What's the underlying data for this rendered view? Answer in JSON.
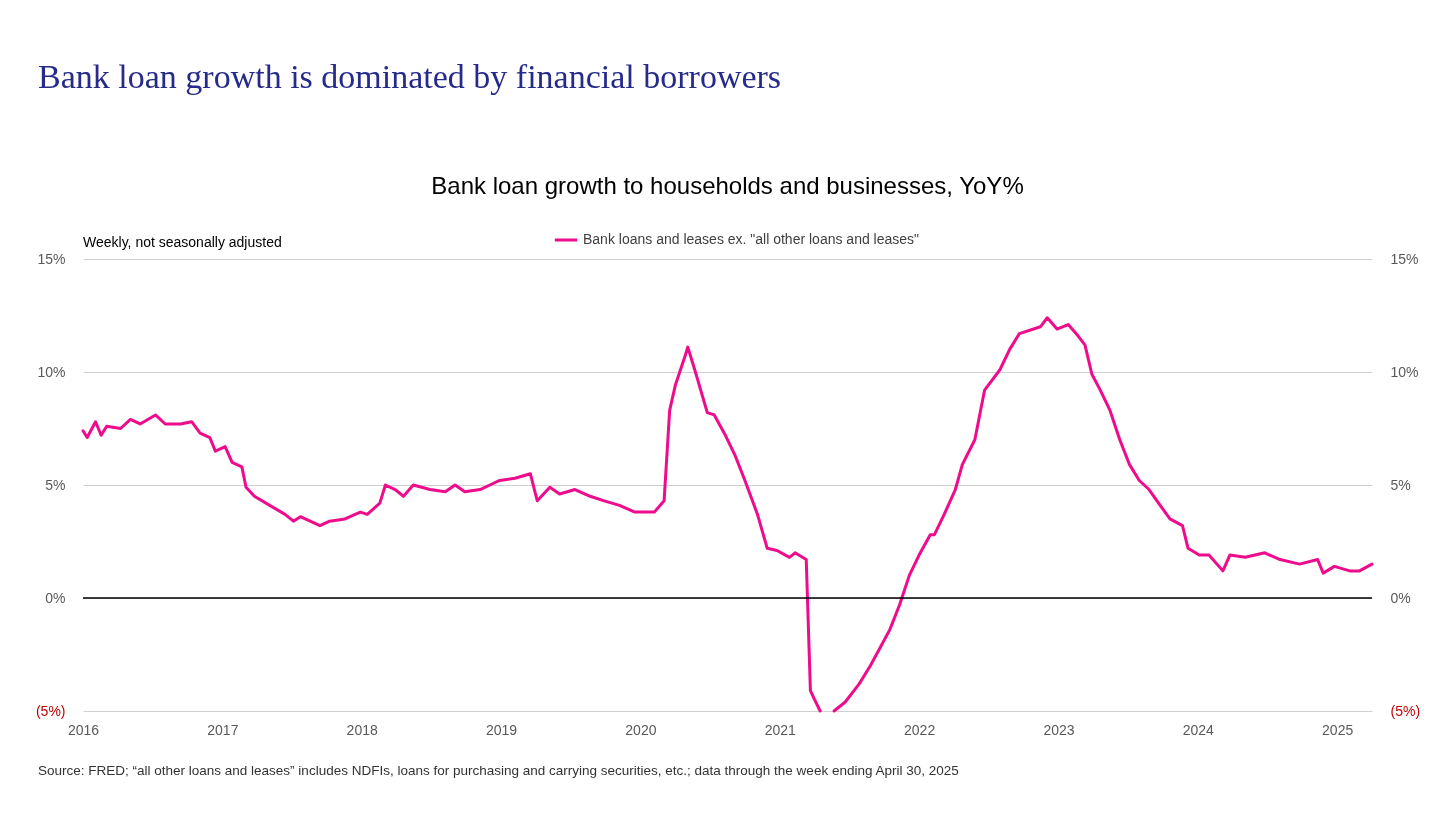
{
  "chart_data": {
    "type": "line",
    "title": "Bank loan growth is dominated by financial borrowers",
    "subtitle": "Bank loan growth to households and businesses, YoY%",
    "annotations": [
      "Weekly, not seasonally adjusted",
      "Source: FRED; “all other loans and leases” includes NDFIs, loans for purchasing and carrying securities, etc.; data through the week ending April 30, 2025"
    ],
    "x": [
      2016.0,
      2016.03,
      2016.09,
      2016.13,
      2016.17,
      2016.27,
      2016.34,
      2016.41,
      2016.52,
      2016.59,
      2016.7,
      2016.78,
      2016.84,
      2016.91,
      2016.95,
      2017.02,
      2017.07,
      2017.14,
      2017.17,
      2017.23,
      2017.34,
      2017.45,
      2017.51,
      2017.56,
      2017.63,
      2017.7,
      2017.77,
      2017.88,
      2017.99,
      2018.04,
      2018.13,
      2018.17,
      2018.24,
      2018.3,
      2018.37,
      2018.49,
      2018.6,
      2018.67,
      2018.74,
      2018.85,
      2018.92,
      2018.99,
      2019.1,
      2019.21,
      2019.26,
      2019.35,
      2019.42,
      2019.53,
      2019.64,
      2019.74,
      2019.85,
      2019.96,
      2020.1,
      2020.17,
      2020.21,
      2020.25,
      2020.32,
      2020.34,
      2020.39,
      2020.48,
      2020.53,
      2020.61,
      2020.68,
      2020.75,
      2020.84,
      2020.91,
      2020.98,
      2021.07,
      2021.11,
      2021.19,
      2021.22,
      2021.25,
      2021.29,
      2021.34,
      2021.39,
      2021.47,
      2021.57,
      2021.65,
      2021.72,
      2021.79,
      2021.86,
      2021.93,
      2022.0,
      2022.08,
      2022.11,
      2022.18,
      2022.26,
      2022.31,
      2022.4,
      2022.47,
      2022.58,
      2022.65,
      2022.72,
      2022.87,
      2022.92,
      2022.99,
      2023.07,
      2023.14,
      2023.19,
      2023.24,
      2023.3,
      2023.37,
      2023.44,
      2023.51,
      2023.58,
      2023.65,
      2023.73,
      2023.8,
      2023.89,
      2023.93,
      2024.01,
      2024.08,
      2024.18,
      2024.23,
      2024.34,
      2024.48,
      2024.59,
      2024.73,
      2024.86,
      2024.9,
      2024.98,
      2025.09,
      2025.16,
      2025.25
    ],
    "series": [
      {
        "name": "Bank loans and leases ex. \"all other loans and leases\"",
        "color": "#ee0c8c",
        "values": [
          7.4,
          7.1,
          7.8,
          7.2,
          7.6,
          7.5,
          7.9,
          7.7,
          8.1,
          7.7,
          7.7,
          7.8,
          7.3,
          7.1,
          6.5,
          6.7,
          6.0,
          5.8,
          4.9,
          4.5,
          4.1,
          3.7,
          3.4,
          3.6,
          3.4,
          3.2,
          3.4,
          3.5,
          3.8,
          3.7,
          4.2,
          5.0,
          4.8,
          4.5,
          5.0,
          4.8,
          4.7,
          5.0,
          4.7,
          4.8,
          5.0,
          5.2,
          5.3,
          5.5,
          4.3,
          4.9,
          4.6,
          4.8,
          4.5,
          4.3,
          4.1,
          3.8,
          3.8,
          4.3,
          8.3,
          9.4,
          10.7,
          11.1,
          10.1,
          8.2,
          8.1,
          7.2,
          6.3,
          5.2,
          3.7,
          2.2,
          2.1,
          1.8,
          2.0,
          1.7,
          -4.1,
          -4.5,
          -5,
          null,
          -5,
          -4.6,
          -3.8,
          -3.0,
          -2.2,
          -1.4,
          -0.3,
          1.0,
          1.9,
          2.8,
          2.8,
          3.7,
          4.8,
          5.9,
          7.0,
          9.2,
          10.1,
          11.0,
          11.7,
          12.0,
          12.4,
          11.9,
          12.1,
          11.6,
          11.2,
          9.9,
          9.2,
          8.3,
          7.0,
          5.9,
          5.2,
          4.8,
          4.1,
          3.5,
          3.2,
          2.2,
          1.9,
          1.9,
          1.2,
          1.9,
          1.8,
          2.0,
          1.7,
          1.5,
          1.7,
          1.1,
          1.4,
          1.2,
          1.2,
          1.5
        ]
      }
    ],
    "xlim": [
      2016,
      2025.25
    ],
    "xticks": [
      2016,
      2017,
      2018,
      2019,
      2020,
      2021,
      2022,
      2023,
      2024,
      2025
    ],
    "ylim": [
      -5,
      15
    ],
    "yticks": [
      {
        "value": -5,
        "label": "(5%)"
      },
      {
        "value": 0,
        "label": "0%"
      },
      {
        "value": 5,
        "label": "5%"
      },
      {
        "value": 10,
        "label": "10%"
      },
      {
        "value": 15,
        "label": "15%"
      }
    ],
    "y2lim": [
      -5,
      15
    ],
    "y2ticks": [
      {
        "value": -5,
        "label": "(5%)"
      },
      {
        "value": 0,
        "label": "0%"
      },
      {
        "value": 5,
        "label": "5%"
      },
      {
        "value": 10,
        "label": "10%"
      },
      {
        "value": 15,
        "label": "15%"
      }
    ],
    "ref_lines": [
      {
        "axis": "y",
        "value": 0,
        "color": "#000000"
      }
    ],
    "grid": "y",
    "legend": "top",
    "marker": "none",
    "line_style": "solid"
  }
}
